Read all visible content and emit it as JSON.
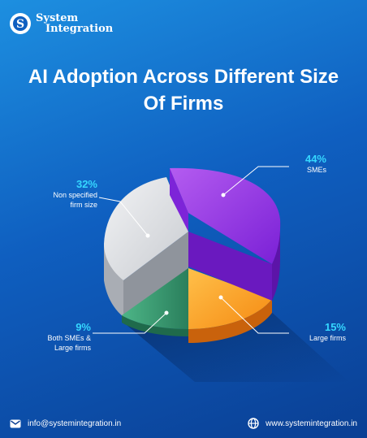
{
  "brand": {
    "name_line1": "System",
    "name_line2": "Integration",
    "icon": "s-logo-icon"
  },
  "colors": {
    "accent": "#35d7ff",
    "sme": "#8a2fe0",
    "non_specified": "#d6d8dc",
    "large": "#f7921e",
    "both": "#2e8f6a"
  },
  "chart_data": {
    "type": "pie",
    "title": "AI Adoption Across Different Size Of Firms",
    "title_lines": [
      "AI Adoption Across Different Size",
      "Of Firms"
    ],
    "style": "3d-exploded",
    "slices": [
      {
        "key": "sme",
        "pct_label": "44%",
        "label_lines": [
          "SMEs"
        ],
        "value": 44
      },
      {
        "key": "large",
        "pct_label": "15%",
        "label_lines": [
          "Large firms"
        ],
        "value": 15
      },
      {
        "key": "both",
        "pct_label": "9%",
        "label_lines": [
          "Both SMEs &",
          "Large firms"
        ],
        "value": 9
      },
      {
        "key": "non",
        "pct_label": "32%",
        "label_lines": [
          "Non specified",
          "firm size"
        ],
        "value": 32
      }
    ]
  },
  "footer": {
    "email": "info@systemintegration.in",
    "website": "www.systemintegration.in",
    "email_icon": "mail-icon",
    "web_icon": "globe-icon"
  }
}
